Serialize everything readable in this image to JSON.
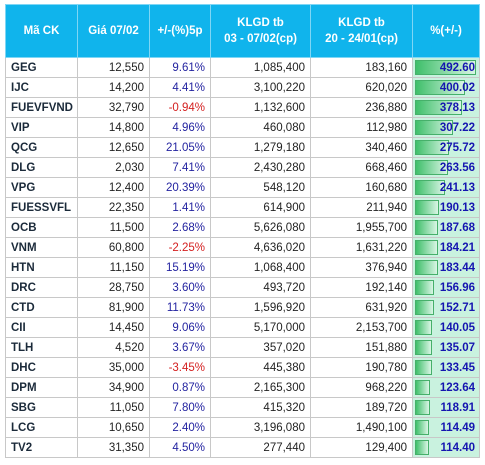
{
  "header": {
    "columns": [
      [
        "Mã CK"
      ],
      [
        "Giá 07/02"
      ],
      [
        "+/-(%)5p"
      ],
      [
        "KLGD tb",
        "03 - 07/02(cp)"
      ],
      [
        "KLGD tb",
        "20 - 24/01(cp)"
      ],
      [
        "%(+/-)"
      ]
    ]
  },
  "table": {
    "rows": [
      [
        "GEG",
        "12,550",
        "9.61%",
        "1,085,400",
        "183,160",
        "492.60"
      ],
      [
        "IJC",
        "14,200",
        "4.41%",
        "3,100,220",
        "620,020",
        "400.02"
      ],
      [
        "FUEVFVND",
        "32,790",
        "-0.94%",
        "1,132,600",
        "236,880",
        "378.13"
      ],
      [
        "VIP",
        "14,800",
        "4.96%",
        "460,080",
        "112,980",
        "307.22"
      ],
      [
        "QCG",
        "12,650",
        "21.05%",
        "1,279,180",
        "340,460",
        "275.72"
      ],
      [
        "DLG",
        "2,030",
        "7.41%",
        "2,430,280",
        "668,460",
        "263.56"
      ],
      [
        "VPG",
        "12,400",
        "20.39%",
        "548,120",
        "160,680",
        "241.13"
      ],
      [
        "FUESSVFL",
        "22,350",
        "1.41%",
        "614,900",
        "211,940",
        "190.13"
      ],
      [
        "OCB",
        "11,500",
        "2.68%",
        "5,626,080",
        "1,955,700",
        "187.68"
      ],
      [
        "VNM",
        "60,800",
        "-2.25%",
        "4,636,020",
        "1,631,220",
        "184.21"
      ],
      [
        "HTN",
        "11,150",
        "15.19%",
        "1,068,400",
        "376,940",
        "183.44"
      ],
      [
        "DRC",
        "28,750",
        "3.60%",
        "493,720",
        "192,140",
        "156.96"
      ],
      [
        "CTD",
        "81,900",
        "11.73%",
        "1,596,920",
        "631,920",
        "152.71"
      ],
      [
        "CII",
        "14,450",
        "9.06%",
        "5,170,000",
        "2,153,700",
        "140.05"
      ],
      [
        "TLH",
        "4,520",
        "3.67%",
        "357,020",
        "151,880",
        "135.07"
      ],
      [
        "DHC",
        "35,000",
        "-3.45%",
        "445,380",
        "190,780",
        "133.45"
      ],
      [
        "DPM",
        "34,900",
        "0.87%",
        "2,165,300",
        "968,220",
        "123.64"
      ],
      [
        "SBG",
        "11,050",
        "7.80%",
        "415,320",
        "189,720",
        "118.91"
      ],
      [
        "LCG",
        "10,650",
        "2.40%",
        "3,196,080",
        "1,490,100",
        "114.49"
      ],
      [
        "TV2",
        "31,350",
        "4.50%",
        "277,440",
        "129,400",
        "114.40"
      ]
    ]
  }
}
